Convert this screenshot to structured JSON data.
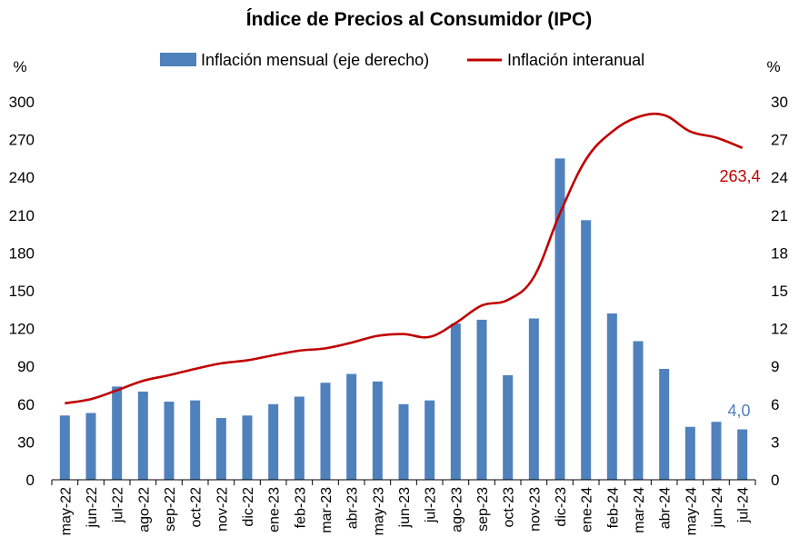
{
  "chart_data": {
    "type": "bar+line",
    "title": "Índice de Precios al Consumidor (IPC)",
    "categories": [
      "may-22",
      "jun-22",
      "jul-22",
      "ago-22",
      "sep-22",
      "oct-22",
      "nov-22",
      "dic-22",
      "ene-23",
      "feb-23",
      "mar-23",
      "abr-23",
      "may-23",
      "jun-23",
      "jul-23",
      "ago-23",
      "sep-23",
      "oct-23",
      "nov-23",
      "dic-23",
      "ene-24",
      "feb-24",
      "mar-24",
      "abr-24",
      "may-24",
      "jun-24",
      "jul-24"
    ],
    "series": [
      {
        "name": "Inflación mensual (eje derecho)",
        "type": "bar",
        "axis": "right",
        "color": "#4f81bd",
        "values": [
          5.1,
          5.3,
          7.4,
          7.0,
          6.2,
          6.3,
          4.9,
          5.1,
          6.0,
          6.6,
          7.7,
          8.4,
          7.8,
          6.0,
          6.3,
          12.4,
          12.7,
          8.3,
          12.8,
          25.5,
          20.6,
          13.2,
          11.0,
          8.8,
          4.2,
          4.6,
          4.0
        ]
      },
      {
        "name": "Inflación interanual",
        "type": "line",
        "axis": "left",
        "color": "#c00000",
        "values": [
          60.7,
          64.0,
          71.0,
          78.5,
          83.0,
          88.0,
          92.4,
          94.8,
          98.8,
          102.5,
          104.3,
          108.8,
          114.2,
          115.6,
          113.4,
          124.4,
          138.3,
          142.7,
          160.9,
          211.4,
          254.2,
          276.2,
          287.9,
          289.4,
          276.4,
          271.5,
          263.4
        ]
      }
    ],
    "y_left": {
      "unit": "%",
      "ylim": [
        0,
        300
      ],
      "ticks": [
        "0",
        "30",
        "60",
        "90",
        "120",
        "150",
        "180",
        "210",
        "240",
        "270",
        "300"
      ]
    },
    "y_right": {
      "unit": "%",
      "ylim": [
        0,
        30
      ],
      "ticks": [
        "0",
        "3",
        "6",
        "9",
        "12",
        "15",
        "18",
        "21",
        "24",
        "27",
        "30"
      ]
    },
    "grid": false,
    "legend_position": "top",
    "annotations": {
      "last_line_label": "263,4",
      "last_bar_label": "4,0"
    }
  }
}
